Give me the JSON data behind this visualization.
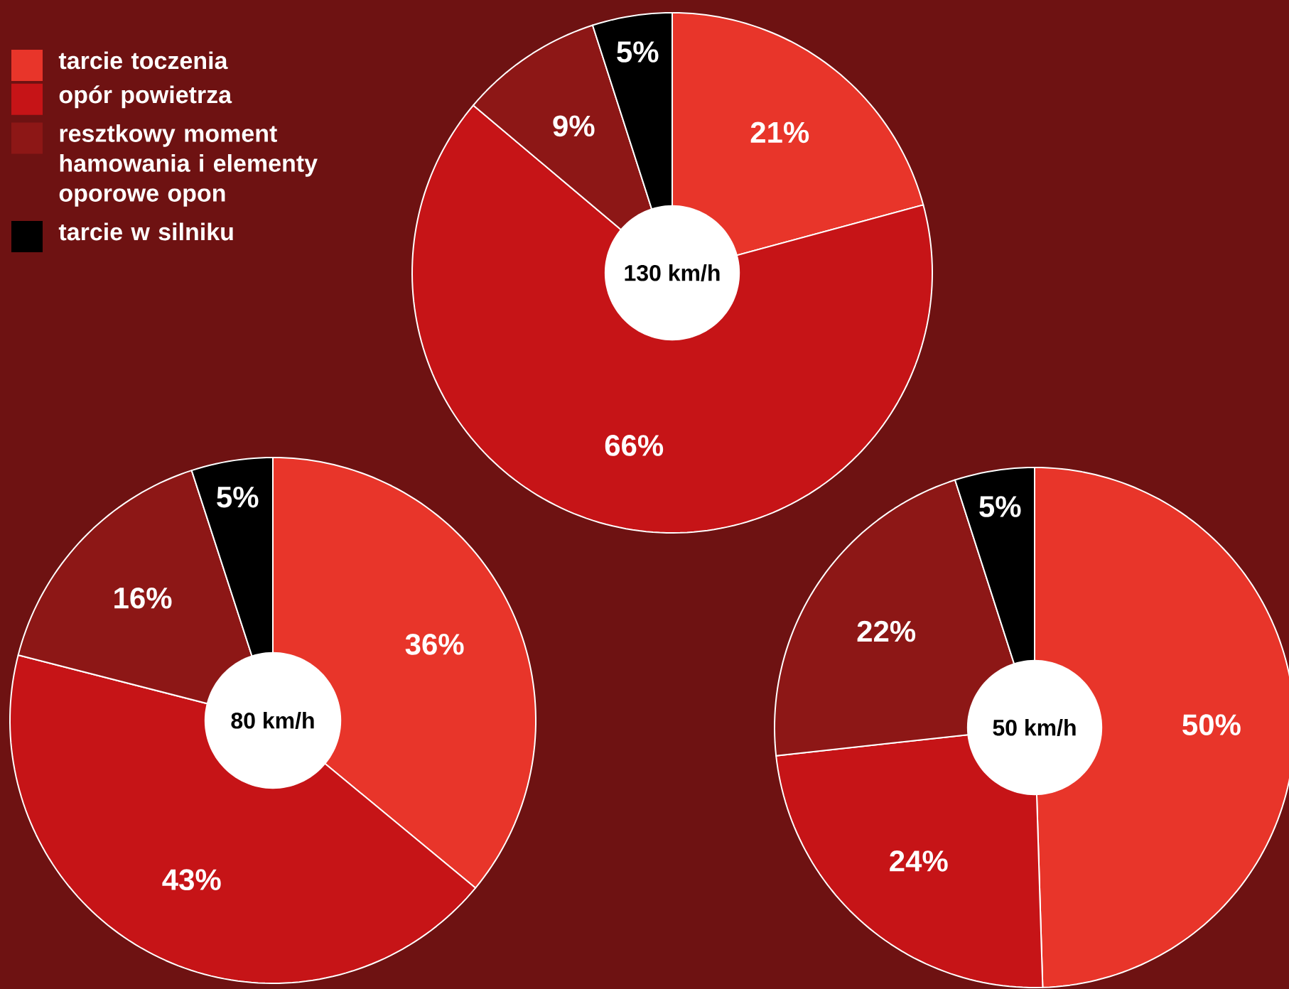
{
  "chart_data": [
    {
      "type": "donut",
      "title": "130 km/h",
      "categories": [
        "tarcie toczenia",
        "opór powietrza",
        "resztkowy moment hamowania i elementy oporowe opon",
        "tarcie w silniku"
      ],
      "values": [
        21,
        66,
        9,
        5
      ],
      "value_labels": [
        "21%",
        "66%",
        "9%",
        "5%"
      ],
      "colors": [
        "#e8352a",
        "#c61417",
        "#8d1716",
        "#000000"
      ],
      "legend": "top left"
    },
    {
      "type": "donut",
      "title": "80 km/h",
      "values": [
        36,
        43,
        16,
        5
      ],
      "value_labels": [
        "36%",
        "43%",
        "16%",
        "5%"
      ],
      "colors": [
        "#e8352a",
        "#c61417",
        "#8d1716",
        "#000000"
      ]
    },
    {
      "type": "donut",
      "title": "50 km/h",
      "values": [
        50,
        24,
        22,
        5
      ],
      "value_labels": [
        "50%",
        "24%",
        "22%",
        "5%"
      ],
      "colors": [
        "#e8352a",
        "#c61417",
        "#8d1716",
        "#000000"
      ]
    }
  ]
}
